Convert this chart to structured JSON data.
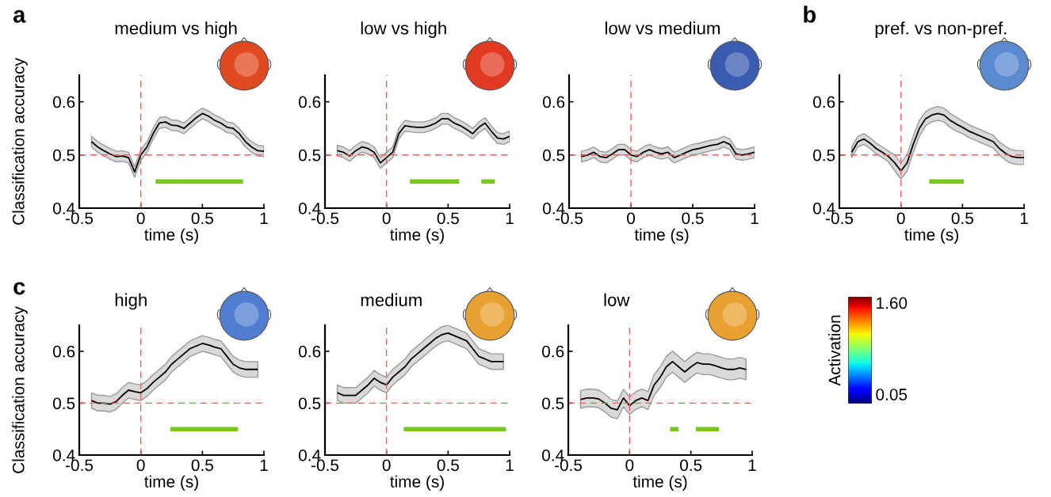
{
  "chart_data": [
    {
      "type": "line",
      "title": "medium vs high",
      "xlabel": "time (s)",
      "ylabel": "Classification accuracy",
      "annotations": [
        "a"
      ],
      "xlim": [
        -0.5,
        1
      ],
      "ylim": [
        0.4,
        0.65
      ],
      "xticks": [
        -0.5,
        0,
        0.5,
        1
      ],
      "yticks": [
        0.4,
        0.5,
        0.6
      ],
      "ref_lines": [
        {
          "axis": "x",
          "value": 0,
          "color": "#ef6060",
          "line_style": "dashed"
        },
        {
          "axis": "y",
          "value": 0.5,
          "color": "#ef6060",
          "line_style": "dashed"
        }
      ],
      "series": [
        {
          "color": "#000000",
          "x": [
            -0.4,
            -0.35,
            -0.3,
            -0.25,
            -0.2,
            -0.15,
            -0.1,
            -0.05,
            0,
            0.05,
            0.1,
            0.15,
            0.2,
            0.25,
            0.3,
            0.35,
            0.4,
            0.45,
            0.5,
            0.55,
            0.6,
            0.65,
            0.7,
            0.75,
            0.8,
            0.85,
            0.9,
            0.95,
            1.0
          ],
          "values": [
            0.525,
            0.515,
            0.508,
            0.502,
            0.497,
            0.498,
            0.495,
            0.468,
            0.5,
            0.515,
            0.54,
            0.56,
            0.562,
            0.556,
            0.555,
            0.55,
            0.56,
            0.57,
            0.578,
            0.573,
            0.565,
            0.56,
            0.552,
            0.55,
            0.54,
            0.525,
            0.515,
            0.508,
            0.507
          ],
          "lower": [
            0.515,
            0.505,
            0.498,
            0.492,
            0.487,
            0.488,
            0.485,
            0.458,
            0.49,
            0.505,
            0.53,
            0.55,
            0.552,
            0.546,
            0.545,
            0.54,
            0.55,
            0.56,
            0.568,
            0.563,
            0.555,
            0.55,
            0.542,
            0.54,
            0.53,
            0.515,
            0.505,
            0.498,
            0.497
          ],
          "upper": [
            0.535,
            0.525,
            0.518,
            0.512,
            0.507,
            0.508,
            0.505,
            0.478,
            0.51,
            0.525,
            0.55,
            0.57,
            0.572,
            0.566,
            0.565,
            0.56,
            0.57,
            0.58,
            0.588,
            0.583,
            0.575,
            0.57,
            0.562,
            0.56,
            0.55,
            0.535,
            0.525,
            0.518,
            0.517
          ]
        },
        {
          "type": "line",
          "color": "#77c71d",
          "x": [
            0.12,
            0.83
          ],
          "values": [
            0.45,
            0.45
          ]
        }
      ]
    },
    {
      "type": "line",
      "title": "low vs high",
      "xlabel": "time (s)",
      "xlim": [
        -0.5,
        1
      ],
      "ylim": [
        0.4,
        0.65
      ],
      "xticks": [
        -0.5,
        0,
        0.5,
        1
      ],
      "yticks": [
        0.4,
        0.5,
        0.6
      ],
      "ref_lines": [
        {
          "axis": "x",
          "value": 0,
          "color": "#ef6060",
          "line_style": "dashed"
        },
        {
          "axis": "y",
          "value": 0.5,
          "color": "#ef6060",
          "line_style": "dashed"
        }
      ],
      "series": [
        {
          "color": "#000000",
          "x": [
            -0.4,
            -0.35,
            -0.3,
            -0.25,
            -0.2,
            -0.15,
            -0.1,
            -0.05,
            0,
            0.05,
            0.1,
            0.15,
            0.2,
            0.25,
            0.3,
            0.35,
            0.4,
            0.45,
            0.5,
            0.55,
            0.6,
            0.65,
            0.7,
            0.75,
            0.8,
            0.85,
            0.9,
            0.95,
            1.0
          ],
          "values": [
            0.508,
            0.505,
            0.498,
            0.508,
            0.515,
            0.512,
            0.505,
            0.485,
            0.495,
            0.505,
            0.54,
            0.555,
            0.553,
            0.552,
            0.552,
            0.555,
            0.56,
            0.568,
            0.568,
            0.56,
            0.555,
            0.548,
            0.54,
            0.552,
            0.56,
            0.545,
            0.532,
            0.53,
            0.535
          ],
          "lower": [
            0.498,
            0.495,
            0.488,
            0.498,
            0.505,
            0.502,
            0.495,
            0.475,
            0.485,
            0.495,
            0.53,
            0.545,
            0.543,
            0.542,
            0.542,
            0.545,
            0.55,
            0.558,
            0.558,
            0.55,
            0.545,
            0.538,
            0.53,
            0.542,
            0.55,
            0.535,
            0.522,
            0.52,
            0.525
          ],
          "upper": [
            0.518,
            0.515,
            0.508,
            0.518,
            0.525,
            0.522,
            0.515,
            0.495,
            0.505,
            0.515,
            0.55,
            0.565,
            0.563,
            0.562,
            0.562,
            0.565,
            0.57,
            0.578,
            0.578,
            0.57,
            0.565,
            0.558,
            0.55,
            0.562,
            0.57,
            0.555,
            0.542,
            0.54,
            0.545
          ]
        },
        {
          "type": "line",
          "color": "#77c71d",
          "x": [
            0.19,
            0.59,
            null,
            0.77,
            0.88
          ],
          "values": [
            0.45,
            0.45,
            null,
            0.45,
            0.45
          ]
        }
      ]
    },
    {
      "type": "line",
      "title": "low vs medium",
      "xlabel": "time (s)",
      "xlim": [
        -0.5,
        1
      ],
      "ylim": [
        0.4,
        0.65
      ],
      "xticks": [
        -0.5,
        0,
        0.5,
        1
      ],
      "yticks": [
        0.4,
        0.5,
        0.6
      ],
      "ref_lines": [
        {
          "axis": "x",
          "value": 0,
          "color": "#ef6060",
          "line_style": "dashed"
        },
        {
          "axis": "y",
          "value": 0.5,
          "color": "#ef6060",
          "line_style": "dashed"
        }
      ],
      "series": [
        {
          "color": "#000000",
          "x": [
            -0.4,
            -0.35,
            -0.3,
            -0.25,
            -0.2,
            -0.15,
            -0.1,
            -0.05,
            0,
            0.05,
            0.1,
            0.15,
            0.2,
            0.25,
            0.3,
            0.35,
            0.4,
            0.45,
            0.5,
            0.55,
            0.6,
            0.65,
            0.7,
            0.75,
            0.8,
            0.85,
            0.9,
            0.95,
            1.0
          ],
          "values": [
            0.497,
            0.5,
            0.505,
            0.497,
            0.495,
            0.502,
            0.51,
            0.51,
            0.5,
            0.497,
            0.505,
            0.51,
            0.505,
            0.502,
            0.505,
            0.495,
            0.5,
            0.505,
            0.51,
            0.512,
            0.515,
            0.518,
            0.52,
            0.525,
            0.52,
            0.502,
            0.5,
            0.502,
            0.505
          ],
          "lower": [
            0.487,
            0.49,
            0.495,
            0.487,
            0.485,
            0.492,
            0.5,
            0.5,
            0.49,
            0.487,
            0.495,
            0.5,
            0.495,
            0.492,
            0.495,
            0.485,
            0.49,
            0.495,
            0.5,
            0.502,
            0.505,
            0.508,
            0.51,
            0.515,
            0.51,
            0.492,
            0.49,
            0.492,
            0.495
          ],
          "upper": [
            0.507,
            0.51,
            0.515,
            0.507,
            0.505,
            0.512,
            0.52,
            0.52,
            0.51,
            0.507,
            0.515,
            0.52,
            0.515,
            0.512,
            0.515,
            0.505,
            0.51,
            0.515,
            0.52,
            0.522,
            0.525,
            0.528,
            0.53,
            0.535,
            0.53,
            0.512,
            0.51,
            0.512,
            0.515
          ]
        }
      ]
    },
    {
      "type": "line",
      "title": "pref. vs non-pref.",
      "xlabel": "time (s)",
      "annotations": [
        "b"
      ],
      "xlim": [
        -0.5,
        1
      ],
      "ylim": [
        0.4,
        0.65
      ],
      "xticks": [
        -0.5,
        0,
        0.5,
        1
      ],
      "yticks": [
        0.4,
        0.5,
        0.6
      ],
      "ref_lines": [
        {
          "axis": "x",
          "value": 0,
          "color": "#ef6060",
          "line_style": "dashed"
        },
        {
          "axis": "y",
          "value": 0.5,
          "color": "#ef6060",
          "line_style": "dashed"
        }
      ],
      "series": [
        {
          "color": "#000000",
          "x": [
            -0.4,
            -0.35,
            -0.3,
            -0.25,
            -0.2,
            -0.15,
            -0.1,
            -0.05,
            0,
            0.05,
            0.1,
            0.15,
            0.2,
            0.25,
            0.3,
            0.35,
            0.4,
            0.45,
            0.5,
            0.55,
            0.6,
            0.65,
            0.7,
            0.75,
            0.8,
            0.85,
            0.9,
            0.95,
            1.0
          ],
          "values": [
            0.505,
            0.525,
            0.53,
            0.522,
            0.512,
            0.505,
            0.497,
            0.485,
            0.47,
            0.485,
            0.52,
            0.55,
            0.568,
            0.575,
            0.578,
            0.575,
            0.565,
            0.558,
            0.552,
            0.545,
            0.54,
            0.535,
            0.53,
            0.525,
            0.512,
            0.503,
            0.497,
            0.495,
            0.495
          ],
          "lower": [
            0.495,
            0.515,
            0.52,
            0.512,
            0.502,
            0.495,
            0.487,
            0.47,
            0.455,
            0.47,
            0.505,
            0.535,
            0.555,
            0.562,
            0.565,
            0.562,
            0.552,
            0.545,
            0.54,
            0.533,
            0.528,
            0.523,
            0.518,
            0.513,
            0.5,
            0.49,
            0.484,
            0.482,
            0.482
          ],
          "upper": [
            0.515,
            0.535,
            0.54,
            0.532,
            0.522,
            0.515,
            0.507,
            0.5,
            0.485,
            0.5,
            0.535,
            0.565,
            0.581,
            0.588,
            0.591,
            0.588,
            0.578,
            0.571,
            0.564,
            0.557,
            0.552,
            0.547,
            0.542,
            0.537,
            0.524,
            0.516,
            0.51,
            0.508,
            0.508
          ]
        },
        {
          "type": "line",
          "color": "#77c71d",
          "x": [
            0.23,
            0.51
          ],
          "values": [
            0.45,
            0.45
          ]
        }
      ]
    },
    {
      "type": "line",
      "title": "high",
      "xlabel": "time (s)",
      "ylabel": "Classification accuracy",
      "annotations": [
        "c"
      ],
      "xlim": [
        -0.5,
        1
      ],
      "ylim": [
        0.4,
        0.65
      ],
      "xticks": [
        -0.5,
        0,
        0.5,
        1
      ],
      "yticks": [
        0.4,
        0.5,
        0.6
      ],
      "ref_lines": [
        {
          "axis": "x",
          "value": 0,
          "color": "#ef6060",
          "line_style": "dashed"
        },
        {
          "axis": "y",
          "value": 0.5,
          "color": "#ef6060",
          "line_style": "dashed"
        }
      ],
      "series": [
        {
          "color": "#000000",
          "x": [
            -0.4,
            -0.35,
            -0.3,
            -0.25,
            -0.2,
            -0.15,
            -0.1,
            -0.05,
            0,
            0.05,
            0.1,
            0.15,
            0.2,
            0.25,
            0.3,
            0.35,
            0.4,
            0.45,
            0.5,
            0.55,
            0.6,
            0.65,
            0.7,
            0.75,
            0.8,
            0.85,
            0.9,
            0.95
          ],
          "values": [
            0.505,
            0.5,
            0.5,
            0.498,
            0.503,
            0.515,
            0.525,
            0.522,
            0.52,
            0.528,
            0.54,
            0.55,
            0.56,
            0.575,
            0.585,
            0.595,
            0.605,
            0.61,
            0.615,
            0.612,
            0.608,
            0.605,
            0.59,
            0.575,
            0.568,
            0.565,
            0.565,
            0.565
          ],
          "lower": [
            0.49,
            0.485,
            0.485,
            0.483,
            0.488,
            0.5,
            0.51,
            0.507,
            0.505,
            0.513,
            0.525,
            0.535,
            0.545,
            0.56,
            0.57,
            0.58,
            0.59,
            0.595,
            0.6,
            0.597,
            0.593,
            0.59,
            0.575,
            0.56,
            0.553,
            0.55,
            0.55,
            0.55
          ],
          "upper": [
            0.52,
            0.515,
            0.515,
            0.513,
            0.518,
            0.53,
            0.54,
            0.537,
            0.535,
            0.543,
            0.555,
            0.565,
            0.575,
            0.59,
            0.6,
            0.61,
            0.62,
            0.625,
            0.63,
            0.627,
            0.623,
            0.62,
            0.605,
            0.59,
            0.583,
            0.58,
            0.58,
            0.58
          ]
        },
        {
          "type": "line",
          "color": "#77c71d",
          "x": [
            0.24,
            0.79
          ],
          "values": [
            0.45,
            0.45
          ]
        }
      ]
    },
    {
      "type": "line",
      "title": "medium",
      "xlabel": "time (s)",
      "xlim": [
        -0.5,
        1
      ],
      "ylim": [
        0.4,
        0.65
      ],
      "xticks": [
        -0.5,
        0,
        0.5,
        1
      ],
      "yticks": [
        0.4,
        0.5,
        0.6
      ],
      "ref_lines": [
        {
          "axis": "x",
          "value": 0,
          "color": "#ef6060",
          "line_style": "dashed"
        },
        {
          "axis": "y",
          "value": 0.5,
          "color": "#ef6060",
          "line_style": "dashed"
        }
      ],
      "series": [
        {
          "color": "#000000",
          "x": [
            -0.4,
            -0.35,
            -0.3,
            -0.25,
            -0.2,
            -0.15,
            -0.1,
            -0.05,
            0,
            0.05,
            0.1,
            0.15,
            0.2,
            0.25,
            0.3,
            0.35,
            0.4,
            0.45,
            0.5,
            0.55,
            0.6,
            0.65,
            0.7,
            0.75,
            0.8,
            0.85,
            0.9,
            0.95
          ],
          "values": [
            0.52,
            0.515,
            0.515,
            0.515,
            0.525,
            0.535,
            0.548,
            0.54,
            0.535,
            0.55,
            0.56,
            0.57,
            0.585,
            0.595,
            0.605,
            0.615,
            0.625,
            0.632,
            0.635,
            0.63,
            0.625,
            0.62,
            0.605,
            0.59,
            0.585,
            0.58,
            0.58,
            0.58
          ],
          "lower": [
            0.505,
            0.5,
            0.5,
            0.5,
            0.51,
            0.52,
            0.533,
            0.525,
            0.52,
            0.535,
            0.545,
            0.555,
            0.57,
            0.58,
            0.59,
            0.6,
            0.61,
            0.617,
            0.62,
            0.615,
            0.61,
            0.605,
            0.59,
            0.575,
            0.57,
            0.565,
            0.565,
            0.565
          ],
          "upper": [
            0.535,
            0.53,
            0.53,
            0.53,
            0.54,
            0.55,
            0.563,
            0.555,
            0.55,
            0.565,
            0.575,
            0.585,
            0.6,
            0.61,
            0.62,
            0.63,
            0.64,
            0.647,
            0.65,
            0.645,
            0.64,
            0.635,
            0.62,
            0.605,
            0.6,
            0.595,
            0.595,
            0.595
          ]
        },
        {
          "type": "line",
          "color": "#77c71d",
          "x": [
            0.14,
            0.97
          ],
          "values": [
            0.45,
            0.45
          ]
        }
      ]
    },
    {
      "type": "line",
      "title": "low",
      "xlabel": "time (s)",
      "xlim": [
        -0.5,
        1
      ],
      "ylim": [
        0.4,
        0.65
      ],
      "xticks": [
        -0.5,
        0,
        0.5,
        1
      ],
      "yticks": [
        0.4,
        0.5,
        0.6
      ],
      "ref_lines": [
        {
          "axis": "x",
          "value": 0,
          "color": "#ef6060",
          "line_style": "dashed"
        },
        {
          "axis": "y",
          "value": 0.5,
          "color": "#ef6060",
          "line_style": "dashed"
        }
      ],
      "series": [
        {
          "color": "#000000",
          "x": [
            -0.4,
            -0.35,
            -0.3,
            -0.25,
            -0.2,
            -0.15,
            -0.1,
            -0.05,
            0,
            0.05,
            0.1,
            0.15,
            0.2,
            0.25,
            0.3,
            0.35,
            0.4,
            0.45,
            0.5,
            0.55,
            0.6,
            0.65,
            0.7,
            0.75,
            0.8,
            0.85,
            0.9,
            0.95
          ],
          "values": [
            0.507,
            0.51,
            0.51,
            0.508,
            0.5,
            0.49,
            0.487,
            0.51,
            0.495,
            0.505,
            0.51,
            0.505,
            0.535,
            0.55,
            0.57,
            0.58,
            0.57,
            0.56,
            0.57,
            0.578,
            0.575,
            0.575,
            0.572,
            0.568,
            0.565,
            0.565,
            0.568,
            0.565
          ],
          "lower": [
            0.49,
            0.493,
            0.493,
            0.491,
            0.483,
            0.473,
            0.47,
            0.493,
            0.478,
            0.488,
            0.493,
            0.488,
            0.515,
            0.53,
            0.55,
            0.56,
            0.55,
            0.54,
            0.55,
            0.558,
            0.555,
            0.555,
            0.552,
            0.548,
            0.545,
            0.545,
            0.548,
            0.545
          ],
          "upper": [
            0.524,
            0.527,
            0.527,
            0.525,
            0.517,
            0.507,
            0.504,
            0.527,
            0.512,
            0.522,
            0.527,
            0.522,
            0.555,
            0.57,
            0.59,
            0.6,
            0.59,
            0.58,
            0.59,
            0.598,
            0.595,
            0.595,
            0.592,
            0.588,
            0.585,
            0.585,
            0.588,
            0.585
          ]
        },
        {
          "type": "line",
          "color": "#77c71d",
          "x": [
            0.33,
            0.4,
            null,
            0.54,
            0.73
          ],
          "values": [
            0.45,
            0.45,
            null,
            0.45,
            0.45
          ]
        }
      ]
    },
    {
      "type": "other",
      "clabel": "Activation",
      "annotations": [
        "1.60",
        "0.05"
      ]
    }
  ]
}
